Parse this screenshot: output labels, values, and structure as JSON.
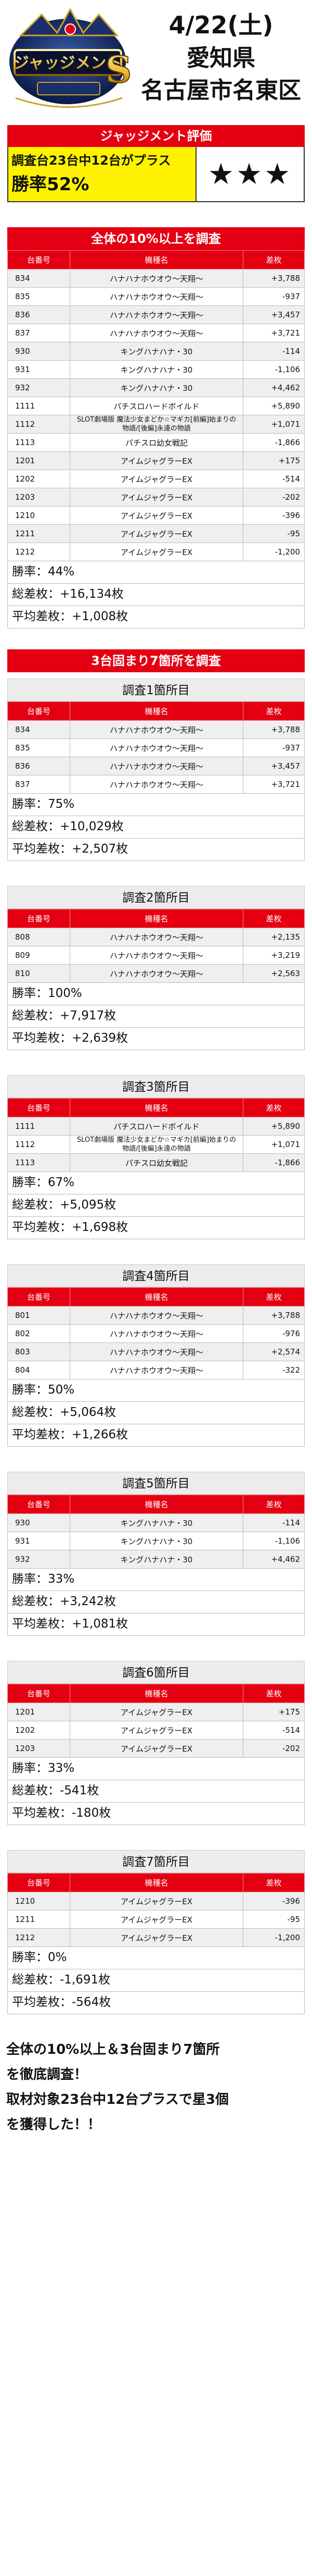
{
  "header": {
    "logo_text": "ジャッジメント",
    "logo_letter": "S",
    "date": "4/22(土)",
    "prefecture": "愛知県",
    "area": "名古屋市名東区"
  },
  "evaluation": {
    "title": "ジャッジメント評価",
    "condition": "調査台23台中12台がプラス",
    "win_rate": "勝率52%",
    "stars": "★★★"
  },
  "table_headers": {
    "number": "台番号",
    "machine": "機種名",
    "diff": "差枚"
  },
  "main_section": {
    "title": "全体の10%以上を調査",
    "rows": [
      {
        "number": "834",
        "machine": "ハナハナホウオウ〜天翔〜",
        "diff": "+3,788"
      },
      {
        "number": "835",
        "machine": "ハナハナホウオウ〜天翔〜",
        "diff": "-937"
      },
      {
        "number": "836",
        "machine": "ハナハナホウオウ〜天翔〜",
        "diff": "+3,457"
      },
      {
        "number": "837",
        "machine": "ハナハナホウオウ〜天翔〜",
        "diff": "+3,721"
      },
      {
        "number": "930",
        "machine": "キングハナハナ・30",
        "diff": "-114"
      },
      {
        "number": "931",
        "machine": "キングハナハナ・30",
        "diff": "-1,106"
      },
      {
        "number": "932",
        "machine": "キングハナハナ・30",
        "diff": "+4,462"
      },
      {
        "number": "1111",
        "machine": "パチスロハードボイルド",
        "diff": "+5,890"
      },
      {
        "number": "1112",
        "machine": "SLOT劇場版 魔法少女まどか☆マギカ[前編]始まりの物語/[後編]永遠の物語",
        "diff": "+1,071",
        "two_line": true
      },
      {
        "number": "1113",
        "machine": "パチスロ幼女戦記",
        "diff": "-1,866"
      },
      {
        "number": "1201",
        "machine": "アイムジャグラーEX",
        "diff": "+175"
      },
      {
        "number": "1202",
        "machine": "アイムジャグラーEX",
        "diff": "-514"
      },
      {
        "number": "1203",
        "machine": "アイムジャグラーEX",
        "diff": "-202"
      },
      {
        "number": "1210",
        "machine": "アイムジャグラーEX",
        "diff": "-396"
      },
      {
        "number": "1211",
        "machine": "アイムジャグラーEX",
        "diff": "-95"
      },
      {
        "number": "1212",
        "machine": "アイムジャグラーEX",
        "diff": "-1,200"
      }
    ],
    "win_rate": "勝率：44%",
    "total": "総差枚：+16,134枚",
    "average": "平均差枚：+1,008枚"
  },
  "cluster_section_title": "3台固まり7箇所を調査",
  "clusters": [
    {
      "title": "調査1箇所目",
      "rows": [
        {
          "number": "834",
          "machine": "ハナハナホウオウ〜天翔〜",
          "diff": "+3,788"
        },
        {
          "number": "835",
          "machine": "ハナハナホウオウ〜天翔〜",
          "diff": "-937"
        },
        {
          "number": "836",
          "machine": "ハナハナホウオウ〜天翔〜",
          "diff": "+3,457"
        },
        {
          "number": "837",
          "machine": "ハナハナホウオウ〜天翔〜",
          "diff": "+3,721"
        }
      ],
      "win_rate": "勝率：75%",
      "total": "総差枚：+10,029枚",
      "average": "平均差枚：+2,507枚"
    },
    {
      "title": "調査2箇所目",
      "rows": [
        {
          "number": "808",
          "machine": "ハナハナホウオウ〜天翔〜",
          "diff": "+2,135"
        },
        {
          "number": "809",
          "machine": "ハナハナホウオウ〜天翔〜",
          "diff": "+3,219"
        },
        {
          "number": "810",
          "machine": "ハナハナホウオウ〜天翔〜",
          "diff": "+2,563"
        }
      ],
      "win_rate": "勝率：100%",
      "total": "総差枚：+7,917枚",
      "average": "平均差枚：+2,639枚"
    },
    {
      "title": "調査3箇所目",
      "rows": [
        {
          "number": "1111",
          "machine": "パチスロハードボイルド",
          "diff": "+5,890"
        },
        {
          "number": "1112",
          "machine": "SLOT劇場版 魔法少女まどか☆マギカ[前編]始まりの物語/[後編]永遠の物語",
          "diff": "+1,071",
          "two_line": true
        },
        {
          "number": "1113",
          "machine": "パチスロ幼女戦記",
          "diff": "-1,866"
        }
      ],
      "win_rate": "勝率：67%",
      "total": "総差枚：+5,095枚",
      "average": "平均差枚：+1,698枚"
    },
    {
      "title": "調査4箇所目",
      "rows": [
        {
          "number": "801",
          "machine": "ハナハナホウオウ〜天翔〜",
          "diff": "+3,788"
        },
        {
          "number": "802",
          "machine": "ハナハナホウオウ〜天翔〜",
          "diff": "-976"
        },
        {
          "number": "803",
          "machine": "ハナハナホウオウ〜天翔〜",
          "diff": "+2,574"
        },
        {
          "number": "804",
          "machine": "ハナハナホウオウ〜天翔〜",
          "diff": "-322"
        }
      ],
      "win_rate": "勝率：50%",
      "total": "総差枚：+5,064枚",
      "average": "平均差枚：+1,266枚"
    },
    {
      "title": "調査5箇所目",
      "rows": [
        {
          "number": "930",
          "machine": "キングハナハナ・30",
          "diff": "-114"
        },
        {
          "number": "931",
          "machine": "キングハナハナ・30",
          "diff": "-1,106"
        },
        {
          "number": "932",
          "machine": "キングハナハナ・30",
          "diff": "+4,462"
        }
      ],
      "win_rate": "勝率：33%",
      "total": "総差枚：+3,242枚",
      "average": "平均差枚：+1,081枚"
    },
    {
      "title": "調査6箇所目",
      "rows": [
        {
          "number": "1201",
          "machine": "アイムジャグラーEX",
          "diff": "+175"
        },
        {
          "number": "1202",
          "machine": "アイムジャグラーEX",
          "diff": "-514"
        },
        {
          "number": "1203",
          "machine": "アイムジャグラーEX",
          "diff": "-202"
        }
      ],
      "win_rate": "勝率：33%",
      "total": "総差枚：-541枚",
      "average": "平均差枚：-180枚"
    },
    {
      "title": "調査7箇所目",
      "rows": [
        {
          "number": "1210",
          "machine": "アイムジャグラーEX",
          "diff": "-396"
        },
        {
          "number": "1211",
          "machine": "アイムジャグラーEX",
          "diff": "-95"
        },
        {
          "number": "1212",
          "machine": "アイムジャグラーEX",
          "diff": "-1,200"
        }
      ],
      "win_rate": "勝率：0%",
      "total": "総差枚：-1,691枚",
      "average": "平均差枚：-564枚"
    }
  ],
  "final_text": [
    "全体の10%以上＆3台固まり7箇所",
    "を徹底調査！",
    "取材対象23台中12台プラスで星3個",
    "を獲得した！！"
  ],
  "colors": {
    "accent_red": "#e40012",
    "highlight_yellow": "#fff200",
    "row_gray": "#efefef"
  }
}
